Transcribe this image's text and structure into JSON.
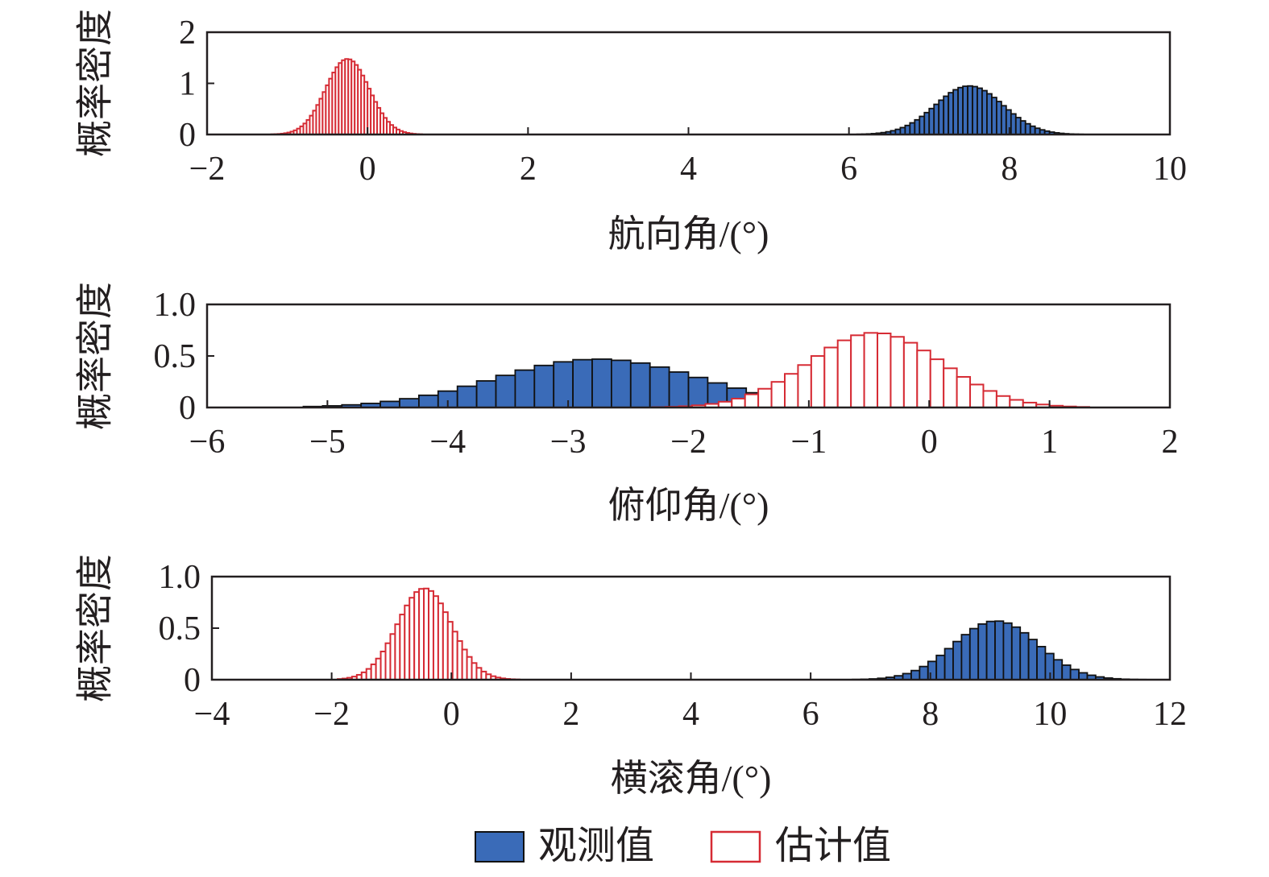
{
  "legend": {
    "items": [
      {
        "label": "观测值",
        "fill": "#3a6bb8",
        "stroke": "#111111"
      },
      {
        "label": "估计值",
        "fill": "#ffffff",
        "stroke": "#d62b34"
      }
    ]
  },
  "chart_data": [
    {
      "type": "histogram",
      "title": "",
      "xlabel": "航向角/(°)",
      "ylabel": "概率密度",
      "xlim": [
        -2,
        10
      ],
      "ylim": [
        0,
        2
      ],
      "xticks": [
        -2,
        0,
        2,
        4,
        6,
        8,
        10
      ],
      "xtick_labels": [
        "−2",
        "0",
        "2",
        "4",
        "6",
        "8",
        "10"
      ],
      "yticks": [
        0,
        1,
        2
      ],
      "ytick_labels": [
        "0",
        "1",
        "2"
      ],
      "series": [
        {
          "name": "观测值",
          "mean": 7.5,
          "std": 0.42,
          "bin_width": 0.06,
          "range": [
            6.1,
            8.9
          ],
          "color": "#3a6bb8"
        },
        {
          "name": "估计值",
          "mean": -0.25,
          "std": 0.27,
          "bin_width": 0.04,
          "range": [
            -1.2,
            0.65
          ],
          "color": "#d62b34"
        }
      ]
    },
    {
      "type": "histogram",
      "title": "",
      "xlabel": "俯仰角/(°)",
      "ylabel": "概率密度",
      "xlim": [
        -6,
        2
      ],
      "ylim": [
        0,
        1.0
      ],
      "xticks": [
        -6,
        -5,
        -4,
        -3,
        -2,
        -1,
        0,
        1,
        2
      ],
      "xtick_labels": [
        "−6",
        "−5",
        "−4",
        "−3",
        "−2",
        "−1",
        "0",
        "1",
        "2"
      ],
      "yticks": [
        0,
        0.5,
        1.0
      ],
      "ytick_labels": [
        "0",
        "0.5",
        "1.0"
      ],
      "series": [
        {
          "name": "观测值",
          "mean": -2.75,
          "std": 0.85,
          "bin_width": 0.16,
          "range": [
            -5.2,
            -0.6
          ],
          "color": "#3a6bb8"
        },
        {
          "name": "估计值",
          "mean": -0.45,
          "std": 0.55,
          "bin_width": 0.11,
          "range": [
            -2.3,
            1.3
          ],
          "color": "#d62b34"
        }
      ]
    },
    {
      "type": "histogram",
      "title": "",
      "xlabel": "横滚角/(°)",
      "ylabel": "概率密度",
      "xlim": [
        -4,
        12
      ],
      "ylim": [
        0,
        1.0
      ],
      "xticks": [
        -4,
        -2,
        0,
        2,
        4,
        6,
        8,
        10,
        12
      ],
      "xtick_labels": [
        "−4",
        "−2",
        "0",
        "2",
        "4",
        "6",
        "8",
        "10",
        "12"
      ],
      "yticks": [
        0,
        0.5,
        1.0
      ],
      "ytick_labels": [
        "0",
        "0.5",
        "1.0"
      ],
      "series": [
        {
          "name": "观测值",
          "mean": 9.1,
          "std": 0.7,
          "bin_width": 0.14,
          "range": [
            6.7,
            11.6
          ],
          "color": "#3a6bb8"
        },
        {
          "name": "估计值",
          "mean": -0.45,
          "std": 0.45,
          "bin_width": 0.08,
          "range": [
            -1.9,
            1.1
          ],
          "color": "#d62b34"
        }
      ]
    }
  ]
}
